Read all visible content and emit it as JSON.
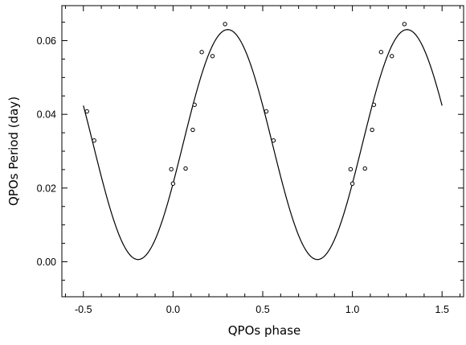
{
  "chart_data": {
    "type": "scatter",
    "title": "",
    "xlabel": "QPOs phase",
    "ylabel": "QPOs Period (day)",
    "xlim": [
      -0.62,
      1.62
    ],
    "ylim": [
      -0.0095,
      0.0695
    ],
    "x_ticks": [
      -0.5,
      0.0,
      0.5,
      1.0,
      1.5
    ],
    "x_tick_labels": [
      "-0.5",
      "0.0",
      "0.5",
      "1.0",
      "1.5"
    ],
    "y_ticks": [
      0.0,
      0.02,
      0.04,
      0.06
    ],
    "y_tick_labels": [
      "0.00",
      "0.02",
      "0.04",
      "0.06"
    ],
    "grid": false,
    "legend": "none",
    "series": [
      {
        "kind": "points",
        "marker": "open-circle",
        "color": "#000000",
        "x": [
          -0.48,
          -0.44,
          -0.01,
          0.0,
          0.07,
          0.11,
          0.12,
          0.16,
          0.22,
          0.29,
          0.52,
          0.56,
          0.99,
          1.0,
          1.07,
          1.11,
          1.12,
          1.16,
          1.22,
          1.29
        ],
        "y": [
          0.0408,
          0.0329,
          0.0251,
          0.0212,
          0.0253,
          0.0358,
          0.0426,
          0.0569,
          0.0558,
          0.0645,
          0.0408,
          0.0329,
          0.0251,
          0.0212,
          0.0253,
          0.0358,
          0.0426,
          0.0569,
          0.0558,
          0.0645
        ]
      },
      {
        "kind": "curve",
        "color": "#000000",
        "model": "sinusoid",
        "period": 1.0,
        "mean": 0.0318,
        "amplitude": 0.0312,
        "peak_phase": 0.305,
        "x_range": [
          -0.5,
          1.5
        ]
      }
    ]
  }
}
